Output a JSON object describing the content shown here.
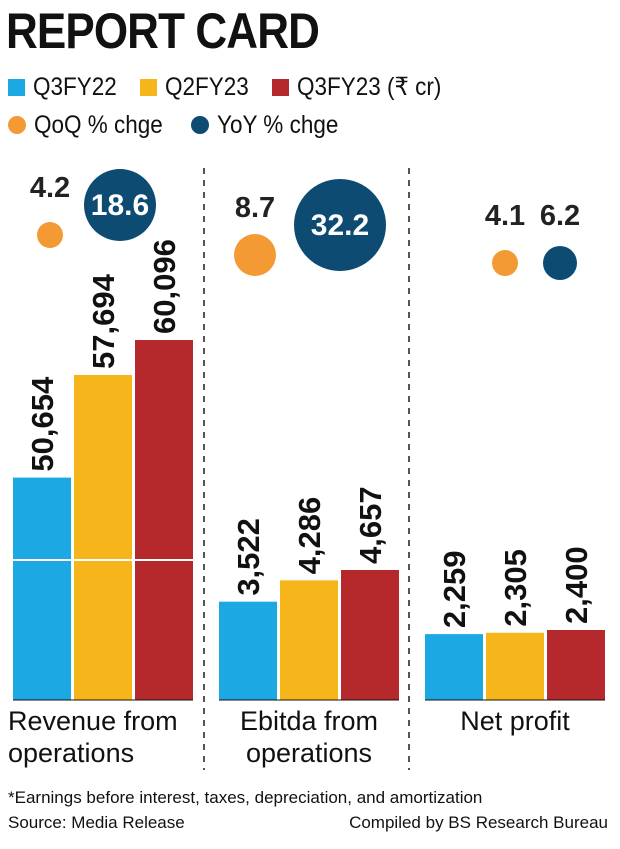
{
  "chart_data": {
    "type": "bar",
    "title": "REPORT CARD",
    "unit_note": "(₹ cr)",
    "categories": [
      "Revenue from operations",
      "Ebitda from operations",
      "Net profit"
    ],
    "category_lines": [
      [
        "Revenue from",
        "operations"
      ],
      [
        "Ebitda from",
        "operations"
      ],
      [
        "Net profit"
      ]
    ],
    "series": [
      {
        "name": "Q3FY22",
        "color": "#1ca8e3",
        "values": [
          50654,
          3522,
          2259
        ],
        "labels": [
          "50,654",
          "3,522",
          "2,259"
        ]
      },
      {
        "name": "Q2FY23",
        "color": "#f7b51c",
        "values": [
          57694,
          4286,
          2305
        ],
        "labels": [
          "57,694",
          "4,286",
          "2,305"
        ]
      },
      {
        "name": "Q3FY23",
        "color": "#b5282b",
        "values": [
          60096,
          4657,
          2400
        ],
        "labels": [
          "60,096",
          "4,657",
          "2,400"
        ]
      }
    ],
    "change_series": [
      {
        "name": "QoQ % chge",
        "color": "#f39a34",
        "values": [
          4.2,
          8.7,
          4.1
        ]
      },
      {
        "name": "YoY % chge",
        "color": "#0e4b72",
        "values": [
          18.6,
          32.2,
          6.2
        ]
      }
    ],
    "axis_breaks": {
      "Revenue from operations": {
        "base_value": 45000,
        "range": [
          0,
          60096
        ]
      },
      "Ebitda from operations": {
        "range": [
          0,
          4657
        ]
      },
      "Net profit": {
        "range": [
          0,
          2400
        ]
      }
    }
  },
  "legend": {
    "q3fy22": "Q3FY22",
    "q2fy23": "Q2FY23",
    "q3fy23": "Q3FY23 (₹ cr)",
    "qoq": "QoQ % chge",
    "yoy": "YoY % chge"
  },
  "footnote": "*Earnings before interest, taxes, depreciation, and amortization",
  "source": "Source: Media Release",
  "credit": "Compiled by BS Research Bureau",
  "colors": {
    "q3fy22": "#1ca8e3",
    "q2fy23": "#f7b51c",
    "q3fy23": "#b5282b",
    "qoq": "#f39a34",
    "yoy": "#0e4b72",
    "text": "#111111"
  }
}
